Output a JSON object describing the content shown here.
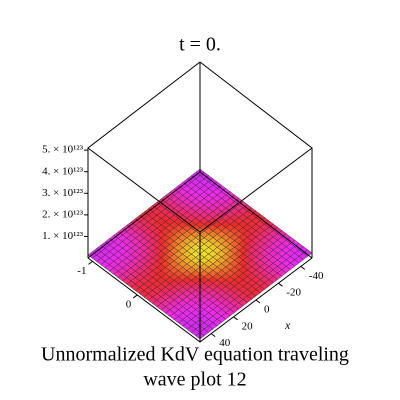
{
  "chart_data": {
    "type": "surface3d",
    "title": "t = 0.",
    "caption": [
      "Unnormalized KdV equation  traveling wave plot 12"
    ],
    "caption_lines": [
      "Unnormalized KdV equation  traveling",
      "wave plot 12"
    ],
    "xlabel": "x",
    "xlim": [
      50,
      -50
    ],
    "xticks": [
      -40,
      -20,
      0,
      20,
      40
    ],
    "ylim": [
      -1.1,
      1.4
    ],
    "yticks": [
      -1,
      0
    ],
    "zlim": [
      0,
      5.1e+123
    ],
    "zticks": [
      {
        "value": 1e+123,
        "label": "1. × 10¹²³"
      },
      {
        "value": 2e+123,
        "label": "2. × 10¹²³"
      },
      {
        "value": 3e+123,
        "label": "3. × 10¹²³"
      },
      {
        "value": 4e+123,
        "label": "4. × 10¹²³"
      },
      {
        "value": 5e+123,
        "label": "5. × 10¹²³"
      }
    ]
  }
}
